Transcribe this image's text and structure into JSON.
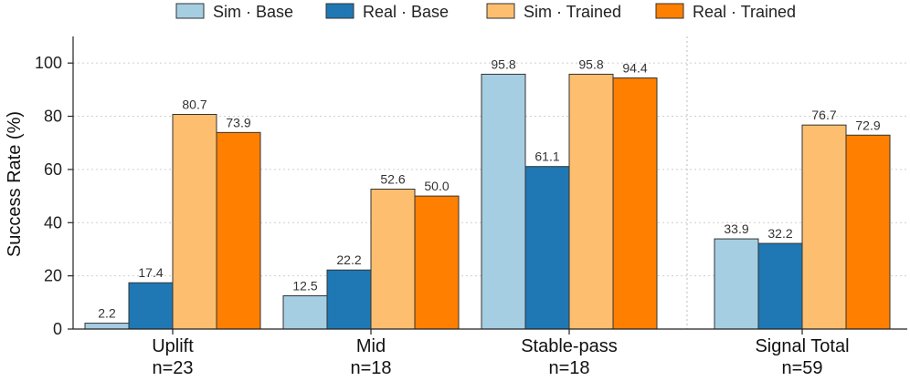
{
  "chart_data": {
    "type": "bar",
    "ylabel": "Success Rate (%)",
    "ylim": [
      0,
      110
    ],
    "yticks": [
      0,
      20,
      40,
      60,
      80,
      100
    ],
    "grid": "horizontal dotted",
    "legend_position": "top",
    "categories": [
      {
        "name": "Uplift",
        "n": "n=23"
      },
      {
        "name": "Mid",
        "n": "n=18"
      },
      {
        "name": "Stable-pass",
        "n": "n=18"
      },
      {
        "name": "Signal Total",
        "n": "n=59"
      }
    ],
    "series": [
      {
        "name": "Sim · Base",
        "color": "#a6cee3",
        "values": [
          2.2,
          12.5,
          95.8,
          33.9
        ],
        "labels": [
          "2.2",
          "12.5",
          "95.8",
          "33.9"
        ]
      },
      {
        "name": "Real · Base",
        "color": "#1f78b4",
        "values": [
          17.4,
          22.2,
          61.1,
          32.2
        ],
        "labels": [
          "17.4",
          "22.2",
          "61.1",
          "32.2"
        ]
      },
      {
        "name": "Sim · Trained",
        "color": "#fdbf6f",
        "values": [
          80.7,
          52.6,
          95.8,
          76.7
        ],
        "labels": [
          "80.7",
          "52.6",
          "95.8",
          "76.7"
        ]
      },
      {
        "name": "Real · Trained",
        "color": "#ff7f00",
        "values": [
          73.9,
          50.0,
          94.4,
          72.9
        ],
        "labels": [
          "73.9",
          "50.0",
          "94.4",
          "72.9"
        ]
      }
    ]
  }
}
